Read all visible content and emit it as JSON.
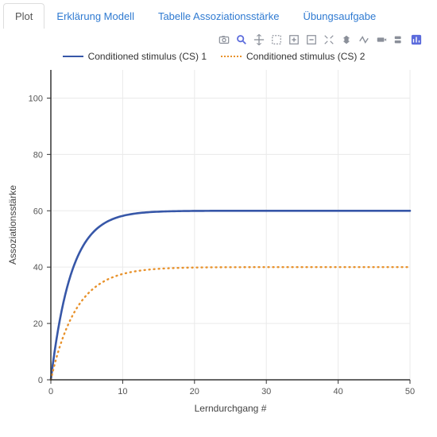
{
  "tabs": [
    {
      "label": "Plot",
      "active": true
    },
    {
      "label": "Erklärung Modell",
      "active": false
    },
    {
      "label": "Tabelle Assoziationsstärke",
      "active": false
    },
    {
      "label": "Übungsaufgabe",
      "active": false
    }
  ],
  "toolbar_icons": [
    "camera-icon",
    "zoom-icon",
    "pan-icon",
    "box-select-icon",
    "zoom-in-icon",
    "zoom-out-icon",
    "autoscale-icon",
    "reset-axes-icon",
    "spike-lines-icon",
    "hover-closest-icon",
    "hover-compare-icon",
    "plotly-logo-icon"
  ],
  "chart": {
    "type": "line",
    "x_label": "Lerndurchgang #",
    "y_label": "Assoziationsstärke",
    "background_color": "#ffffff",
    "grid_color": "#eaeaea",
    "axis_color": "#333333",
    "xlim": [
      0,
      50
    ],
    "ylim": [
      0,
      110
    ],
    "xticks": [
      0,
      10,
      20,
      30,
      40,
      50
    ],
    "yticks": [
      0,
      20,
      40,
      60,
      80,
      100
    ],
    "series": [
      {
        "name": "Conditioned stimulus (CS) 1",
        "color": "#3757a8",
        "width": 2.6,
        "dash": "solid",
        "asymptote": 60,
        "rate": 0.35
      },
      {
        "name": "Conditioned stimulus (CS) 2",
        "color": "#e8922c",
        "width": 2.4,
        "dash": "dotted",
        "asymptote": 40,
        "rate": 0.28
      }
    ],
    "label_fontsize": 12,
    "tick_fontsize": 11
  }
}
